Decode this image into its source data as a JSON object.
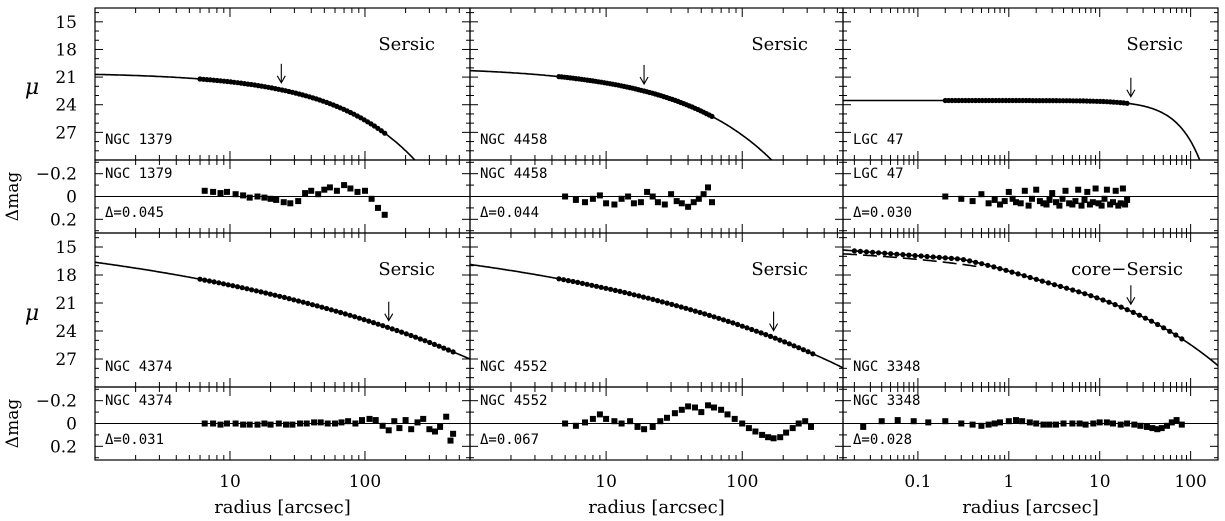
{
  "chart_data": {
    "type": "scatter",
    "xlabel": "radius [arcsec]",
    "ylabel_profile": "μ",
    "ylabel_residual": "Δmag",
    "profile_yticks": [
      "15",
      "18",
      "21",
      "24",
      "27"
    ],
    "residual_yticks": [
      "−0.2",
      "0",
      "0.2"
    ],
    "ylim_profile": [
      13.5,
      30
    ],
    "ylim_residual": [
      -0.32,
      0.32
    ],
    "panels": [
      {
        "name": "NGC 1379",
        "model": "Sersic",
        "delta": "Δ=0.045",
        "xlim": [
          1,
          600
        ],
        "xticks": [
          10,
          100
        ],
        "arrow_r": 24,
        "data_r": [
          6,
          140
        ],
        "model_params": {
          "mu_e": 23.2,
          "r_e": 40,
          "n": 1.4
        },
        "residual_points": [
          [
            6.5,
            -0.05
          ],
          [
            7.5,
            -0.04
          ],
          [
            8.5,
            -0.03
          ],
          [
            9.5,
            -0.04
          ],
          [
            11,
            -0.02
          ],
          [
            12.5,
            -0.01
          ],
          [
            14,
            0.01
          ],
          [
            16,
            0.0
          ],
          [
            18,
            0.01
          ],
          [
            20,
            0.02
          ],
          [
            22,
            0.03
          ],
          [
            25,
            0.05
          ],
          [
            28,
            0.06
          ],
          [
            32,
            0.04
          ],
          [
            36,
            -0.03
          ],
          [
            40,
            -0.05
          ],
          [
            45,
            -0.02
          ],
          [
            50,
            -0.06
          ],
          [
            55,
            -0.08
          ],
          [
            62,
            -0.05
          ],
          [
            70,
            -0.1
          ],
          [
            78,
            -0.07
          ],
          [
            88,
            -0.04
          ],
          [
            100,
            -0.05
          ],
          [
            112,
            0.02
          ],
          [
            125,
            0.1
          ],
          [
            140,
            0.16
          ]
        ]
      },
      {
        "name": "NGC 4458",
        "model": "Sersic",
        "delta": "Δ=0.044",
        "xlim": [
          1,
          550
        ],
        "xticks": [
          10,
          100
        ],
        "arrow_r": 19,
        "data_r": [
          4.5,
          60
        ],
        "model_params": {
          "mu_e": 23.0,
          "r_e": 25,
          "n": 1.6
        },
        "residual_points": [
          [
            5,
            0.0
          ],
          [
            6,
            0.03
          ],
          [
            7,
            0.05
          ],
          [
            8,
            0.02
          ],
          [
            9,
            -0.01
          ],
          [
            10,
            0.06
          ],
          [
            11.5,
            0.07
          ],
          [
            13,
            0.02
          ],
          [
            14.5,
            0.0
          ],
          [
            16,
            0.06
          ],
          [
            18,
            0.05
          ],
          [
            20,
            -0.04
          ],
          [
            22,
            0.0
          ],
          [
            24,
            0.05
          ],
          [
            27,
            0.07
          ],
          [
            30,
            -0.02
          ],
          [
            33,
            0.04
          ],
          [
            36,
            0.06
          ],
          [
            40,
            0.09
          ],
          [
            44,
            0.05
          ],
          [
            48,
            0.02
          ],
          [
            52,
            -0.02
          ],
          [
            56,
            -0.08
          ],
          [
            60,
            0.05
          ]
        ]
      },
      {
        "name": "LGC 47",
        "model": "Sersic",
        "delta": "Δ=0.030",
        "xlim": [
          0.015,
          200
        ],
        "xticks": [
          0.1,
          1,
          10,
          100
        ],
        "arrow_r": 22,
        "data_r": [
          0.2,
          20
        ],
        "model_params": {
          "mu_e": 24.5,
          "r_e": 40,
          "n": 0.6
        },
        "residual_points": [
          [
            0.2,
            0.0
          ],
          [
            0.3,
            0.02
          ],
          [
            0.4,
            0.04
          ],
          [
            0.5,
            -0.02
          ],
          [
            0.6,
            0.06
          ],
          [
            0.7,
            0.03
          ],
          [
            0.8,
            0.07
          ],
          [
            0.9,
            0.04
          ],
          [
            1.0,
            -0.04
          ],
          [
            1.1,
            0.02
          ],
          [
            1.2,
            0.05
          ],
          [
            1.35,
            0.06
          ],
          [
            1.5,
            -0.05
          ],
          [
            1.65,
            0.08
          ],
          [
            1.8,
            0.02
          ],
          [
            2.0,
            -0.06
          ],
          [
            2.2,
            0.04
          ],
          [
            2.4,
            0.06
          ],
          [
            2.6,
            0.07
          ],
          [
            2.8,
            0.03
          ],
          [
            3.0,
            -0.03
          ],
          [
            3.3,
            0.05
          ],
          [
            3.6,
            0.08
          ],
          [
            3.9,
            0.02
          ],
          [
            4.2,
            -0.05
          ],
          [
            4.6,
            0.06
          ],
          [
            5.0,
            0.07
          ],
          [
            5.4,
            0.04
          ],
          [
            5.8,
            -0.06
          ],
          [
            6.3,
            0.08
          ],
          [
            6.8,
            0.03
          ],
          [
            7.3,
            -0.04
          ],
          [
            7.8,
            0.07
          ],
          [
            8.4,
            0.05
          ],
          [
            9.0,
            -0.07
          ],
          [
            9.7,
            0.06
          ],
          [
            10.5,
            0.08
          ],
          [
            11.3,
            0.02
          ],
          [
            12,
            -0.06
          ],
          [
            13,
            0.07
          ],
          [
            14,
            0.05
          ],
          [
            15,
            -0.05
          ],
          [
            16,
            0.08
          ],
          [
            17,
            0.06
          ],
          [
            18,
            -0.07
          ],
          [
            19,
            0.07
          ],
          [
            20,
            0.03
          ]
        ]
      },
      {
        "name": "NGC 4374",
        "model": "Sersic",
        "delta": "Δ=0.031",
        "xlim": [
          1,
          600
        ],
        "xticks": [
          10,
          100
        ],
        "arrow_r": 150,
        "data_r": [
          6,
          450
        ],
        "model_params": {
          "mu_e": 23.5,
          "r_e": 140,
          "n": 5.5
        },
        "residual_points": [
          [
            6.5,
            0.0
          ],
          [
            7.5,
            0.0
          ],
          [
            8.5,
            0.01
          ],
          [
            9.5,
            0.0
          ],
          [
            11,
            0.0
          ],
          [
            12.5,
            0.01
          ],
          [
            14,
            0.01
          ],
          [
            16,
            0.01
          ],
          [
            18,
            0.0
          ],
          [
            20,
            0.01
          ],
          [
            23,
            0.0
          ],
          [
            26,
            0.01
          ],
          [
            29,
            0.01
          ],
          [
            33,
            0.0
          ],
          [
            37,
            0.0
          ],
          [
            42,
            -0.01
          ],
          [
            47,
            -0.01
          ],
          [
            53,
            0.0
          ],
          [
            60,
            0.0
          ],
          [
            67,
            -0.01
          ],
          [
            75,
            -0.02
          ],
          [
            85,
            0.0
          ],
          [
            95,
            -0.03
          ],
          [
            108,
            -0.04
          ],
          [
            120,
            -0.03
          ],
          [
            135,
            0.02
          ],
          [
            150,
            0.06
          ],
          [
            165,
            -0.02
          ],
          [
            180,
            0.04
          ],
          [
            200,
            -0.03
          ],
          [
            220,
            0.05
          ],
          [
            245,
            -0.01
          ],
          [
            270,
            -0.04
          ],
          [
            300,
            0.05
          ],
          [
            330,
            0.07
          ],
          [
            360,
            0.03
          ],
          [
            400,
            -0.06
          ],
          [
            430,
            0.15
          ],
          [
            450,
            0.09
          ]
        ]
      },
      {
        "name": "NGC 4552",
        "model": "Sersic",
        "delta": "Δ=0.067",
        "xlim": [
          1,
          550
        ],
        "xticks": [
          10,
          100
        ],
        "arrow_r": 170,
        "data_r": [
          4.5,
          330
        ],
        "model_params": {
          "mu_e": 23.0,
          "r_e": 80,
          "n": 5.0
        },
        "residual_points": [
          [
            5,
            0.0
          ],
          [
            6,
            0.02
          ],
          [
            7,
            -0.01
          ],
          [
            8,
            -0.04
          ],
          [
            9,
            -0.08
          ],
          [
            10,
            -0.04
          ],
          [
            11.5,
            -0.02
          ],
          [
            13,
            0.0
          ],
          [
            15,
            -0.02
          ],
          [
            17,
            0.03
          ],
          [
            19,
            0.05
          ],
          [
            22,
            0.03
          ],
          [
            25,
            -0.02
          ],
          [
            28,
            -0.05
          ],
          [
            32,
            -0.09
          ],
          [
            36,
            -0.12
          ],
          [
            40,
            -0.15
          ],
          [
            45,
            -0.14
          ],
          [
            50,
            -0.1
          ],
          [
            56,
            -0.16
          ],
          [
            62,
            -0.14
          ],
          [
            70,
            -0.12
          ],
          [
            78,
            -0.08
          ],
          [
            88,
            -0.04
          ],
          [
            100,
            0.0
          ],
          [
            112,
            0.04
          ],
          [
            125,
            0.07
          ],
          [
            140,
            0.1
          ],
          [
            155,
            0.12
          ],
          [
            170,
            0.13
          ],
          [
            190,
            0.12
          ],
          [
            210,
            0.08
          ],
          [
            235,
            0.04
          ],
          [
            260,
            0.0
          ],
          [
            290,
            -0.02
          ],
          [
            320,
            0.03
          ]
        ]
      },
      {
        "name": "NGC 3348",
        "model": "core−Sersic",
        "delta": "Δ=0.028",
        "xlim": [
          0.015,
          200
        ],
        "xticks": [
          0.1,
          1,
          10,
          100
        ],
        "arrow_r": 22,
        "data_r": [
          0.02,
          80
        ],
        "model_params": {
          "mu_b": 16.3,
          "r_b": 0.3,
          "mu_e": 22.5,
          "r_e": 30,
          "n": 3.5
        },
        "residual_points": [
          [
            0.025,
            0.03
          ],
          [
            0.04,
            -0.02
          ],
          [
            0.06,
            -0.03
          ],
          [
            0.09,
            -0.02
          ],
          [
            0.13,
            -0.01
          ],
          [
            0.2,
            -0.02
          ],
          [
            0.3,
            0.0
          ],
          [
            0.4,
            0.01
          ],
          [
            0.5,
            0.02
          ],
          [
            0.6,
            0.01
          ],
          [
            0.7,
            0.0
          ],
          [
            0.8,
            -0.01
          ],
          [
            1.0,
            -0.02
          ],
          [
            1.2,
            -0.03
          ],
          [
            1.4,
            -0.02
          ],
          [
            1.7,
            -0.01
          ],
          [
            2.0,
            0.0
          ],
          [
            2.4,
            0.01
          ],
          [
            2.8,
            0.01
          ],
          [
            3.3,
            0.01
          ],
          [
            4,
            0.0
          ],
          [
            5,
            0.0
          ],
          [
            6,
            0.0
          ],
          [
            7,
            0.01
          ],
          [
            8.5,
            0.0
          ],
          [
            10,
            -0.01
          ],
          [
            12,
            -0.01
          ],
          [
            14,
            0.0
          ],
          [
            17,
            0.01
          ],
          [
            20,
            0.0
          ],
          [
            24,
            0.01
          ],
          [
            28,
            0.02
          ],
          [
            33,
            0.03
          ],
          [
            38,
            0.04
          ],
          [
            43,
            0.05
          ],
          [
            48,
            0.04
          ],
          [
            55,
            0.02
          ],
          [
            62,
            -0.01
          ],
          [
            70,
            -0.03
          ],
          [
            80,
            0.01
          ]
        ]
      }
    ]
  }
}
